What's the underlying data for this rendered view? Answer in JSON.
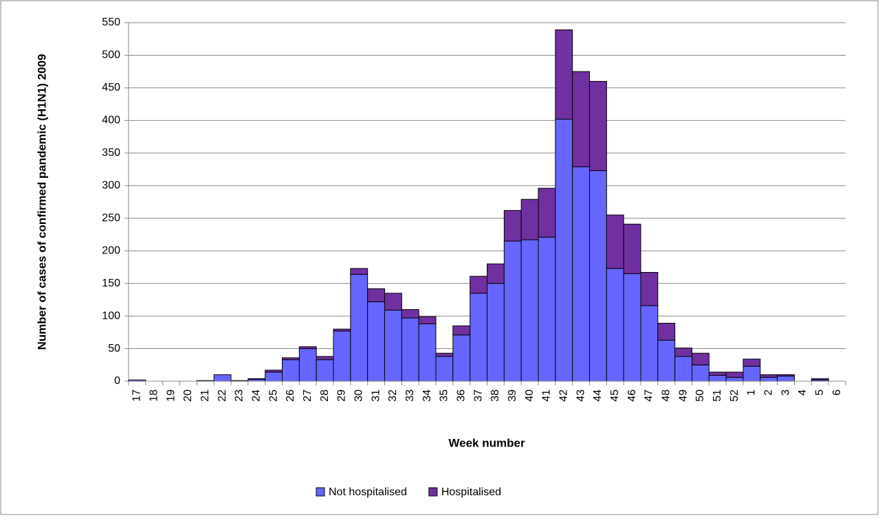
{
  "chart_data": {
    "type": "stacked_bar",
    "y_label": "Number of cases of confirmed pandemic (H1N1) 2009",
    "x_label": "Week number",
    "categories": [
      "17",
      "18",
      "19",
      "20",
      "21",
      "22",
      "23",
      "24",
      "25",
      "26",
      "27",
      "28",
      "29",
      "30",
      "31",
      "32",
      "33",
      "34",
      "35",
      "36",
      "37",
      "38",
      "39",
      "40",
      "41",
      "42",
      "43",
      "44",
      "45",
      "46",
      "47",
      "48",
      "49",
      "50",
      "51",
      "52",
      "1",
      "2",
      "3",
      "4",
      "5",
      "6"
    ],
    "series": [
      {
        "name": "Not hospitalised",
        "color": "#6666ff",
        "values": [
          2,
          0,
          0,
          0,
          1,
          10,
          1,
          3,
          14,
          33,
          50,
          33,
          77,
          164,
          122,
          109,
          97,
          88,
          38,
          71,
          135,
          150,
          215,
          217,
          221,
          402,
          329,
          323,
          173,
          165,
          116,
          63,
          38,
          25,
          9,
          6,
          23,
          6,
          8,
          0,
          2,
          0
        ]
      },
      {
        "name": "Hospitalised",
        "color": "#7030a0",
        "values": [
          0,
          0,
          0,
          0,
          0,
          0,
          0,
          1,
          3,
          3,
          3,
          5,
          3,
          9,
          20,
          26,
          13,
          11,
          5,
          14,
          26,
          30,
          47,
          62,
          75,
          137,
          146,
          137,
          82,
          76,
          51,
          26,
          13,
          18,
          5,
          8,
          11,
          4,
          2,
          0,
          2,
          0
        ]
      }
    ],
    "ylim": [
      0,
      550
    ],
    "yticks": [
      0,
      50,
      100,
      150,
      200,
      250,
      300,
      350,
      400,
      450,
      500,
      550
    ],
    "grid": true
  }
}
